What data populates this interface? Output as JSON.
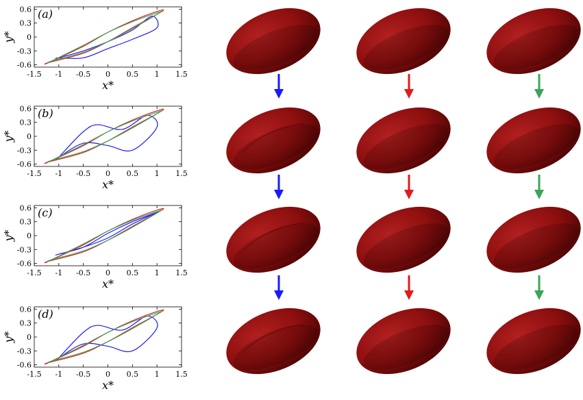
{
  "figure": {
    "panels": [
      {
        "label": "(a)"
      },
      {
        "label": "(b)"
      },
      {
        "label": "(c)"
      },
      {
        "label": "(d)"
      }
    ],
    "axes": {
      "xlabel": "x*",
      "ylabel": "y*",
      "xticks": [
        "-1.5",
        "-1",
        "-0.5",
        "0",
        "0.5",
        "1",
        "1.5"
      ],
      "yticks": [
        "0.6",
        "0.3",
        "0",
        "-0.3",
        "-0.6"
      ]
    },
    "colors": {
      "blue": "#1a1aff",
      "red": "#e21b1b",
      "green": "#3aa55a",
      "cell": "#8e0f0f",
      "cell_dark": "#4a0404",
      "cell_light": "#b22020"
    }
  },
  "chart_data": [
    {
      "type": "line",
      "title": "(a)",
      "xlabel": "x*",
      "ylabel": "y*",
      "xlim": [
        -1.5,
        1.5
      ],
      "ylim": [
        -0.65,
        0.65
      ],
      "series": [
        {
          "color": "blue",
          "x": [
            -1.0,
            -0.5,
            0.0,
            0.5,
            0.9,
            1.0,
            0.5,
            0.0,
            -0.5,
            -1.0
          ],
          "y": [
            -0.45,
            -0.3,
            -0.1,
            0.15,
            0.45,
            0.2,
            -0.05,
            -0.25,
            -0.45,
            -0.45
          ]
        },
        {
          "color": "red",
          "x": [
            -1.2,
            -0.5,
            0.0,
            0.5,
            1.1,
            1.0,
            0.5,
            0.0,
            -0.5,
            -1.2
          ],
          "y": [
            -0.55,
            -0.35,
            -0.1,
            0.2,
            0.55,
            0.55,
            0.35,
            0.1,
            -0.2,
            -0.55
          ]
        },
        {
          "color": "green",
          "x": [
            -1.15,
            -0.5,
            0.0,
            0.5,
            1.05,
            1.0,
            0.5,
            0.0,
            -0.5,
            -1.15
          ],
          "y": [
            -0.52,
            -0.33,
            -0.1,
            0.18,
            0.52,
            0.52,
            0.33,
            0.1,
            -0.18,
            -0.52
          ]
        }
      ]
    },
    {
      "type": "line",
      "title": "(b)",
      "xlabel": "x*",
      "ylabel": "y*",
      "xlim": [
        -1.5,
        1.5
      ],
      "ylim": [
        -0.65,
        0.65
      ],
      "series": [
        {
          "color": "blue",
          "x": [
            -1.0,
            -0.5,
            -0.2,
            0.3,
            0.8,
            1.0,
            0.5,
            0.0,
            -0.5,
            -1.0
          ],
          "y": [
            -0.45,
            0.1,
            0.25,
            0.15,
            0.45,
            0.2,
            -0.3,
            -0.2,
            -0.15,
            -0.45
          ]
        },
        {
          "color": "red",
          "x": [
            -1.2,
            -0.5,
            0.0,
            0.5,
            1.1,
            1.0,
            0.5,
            0.0,
            -0.5,
            -1.2
          ],
          "y": [
            -0.55,
            -0.35,
            -0.1,
            0.2,
            0.55,
            0.55,
            0.35,
            0.1,
            -0.2,
            -0.55
          ]
        },
        {
          "color": "green",
          "x": [
            -1.15,
            -0.5,
            0.0,
            0.5,
            1.05,
            1.0,
            0.5,
            0.0,
            -0.5,
            -1.15
          ],
          "y": [
            -0.52,
            -0.33,
            -0.1,
            0.18,
            0.52,
            0.52,
            0.33,
            0.1,
            -0.18,
            -0.52
          ]
        }
      ]
    },
    {
      "type": "line",
      "title": "(c)",
      "xlabel": "x*",
      "ylabel": "y*",
      "xlim": [
        -1.5,
        1.5
      ],
      "ylim": [
        -0.65,
        0.65
      ],
      "series": [
        {
          "color": "blue",
          "x": [
            -1.0,
            -0.5,
            0.0,
            0.5,
            1.0,
            1.0,
            0.5,
            0.0,
            -0.5,
            -1.0
          ],
          "y": [
            -0.4,
            -0.25,
            -0.05,
            0.25,
            0.5,
            0.5,
            0.3,
            0.05,
            -0.25,
            -0.4
          ]
        },
        {
          "color": "red",
          "x": [
            -1.2,
            -0.5,
            0.0,
            0.5,
            1.1,
            1.0,
            0.5,
            0.0,
            -0.5,
            -1.2
          ],
          "y": [
            -0.55,
            -0.35,
            -0.1,
            0.2,
            0.55,
            0.55,
            0.35,
            0.1,
            -0.2,
            -0.55
          ]
        },
        {
          "color": "green",
          "x": [
            -1.15,
            -0.5,
            0.0,
            0.5,
            1.05,
            1.0,
            0.5,
            0.0,
            -0.5,
            -1.15
          ],
          "y": [
            -0.52,
            -0.33,
            -0.1,
            0.18,
            0.52,
            0.52,
            0.33,
            0.1,
            -0.18,
            -0.52
          ]
        }
      ]
    },
    {
      "type": "line",
      "title": "(d)",
      "xlabel": "x*",
      "ylabel": "y*",
      "xlim": [
        -1.5,
        1.5
      ],
      "ylim": [
        -0.65,
        0.65
      ],
      "series": [
        {
          "color": "blue",
          "x": [
            -1.0,
            -0.5,
            -0.2,
            0.3,
            0.8,
            1.0,
            0.5,
            0.0,
            -0.5,
            -1.0
          ],
          "y": [
            -0.45,
            0.1,
            0.25,
            0.15,
            0.45,
            0.2,
            -0.3,
            -0.2,
            -0.15,
            -0.45
          ]
        },
        {
          "color": "red",
          "x": [
            -1.2,
            -0.5,
            0.0,
            0.5,
            1.1,
            1.0,
            0.5,
            0.0,
            -0.5,
            -1.2
          ],
          "y": [
            -0.55,
            -0.35,
            -0.1,
            0.2,
            0.55,
            0.55,
            0.35,
            0.1,
            -0.2,
            -0.55
          ]
        },
        {
          "color": "green",
          "x": [
            -1.15,
            -0.5,
            0.0,
            0.5,
            1.05,
            1.0,
            0.5,
            0.0,
            -0.5,
            -1.15
          ],
          "y": [
            -0.52,
            -0.33,
            -0.1,
            0.18,
            0.52,
            0.52,
            0.33,
            0.1,
            -0.18,
            -0.52
          ]
        }
      ]
    }
  ]
}
